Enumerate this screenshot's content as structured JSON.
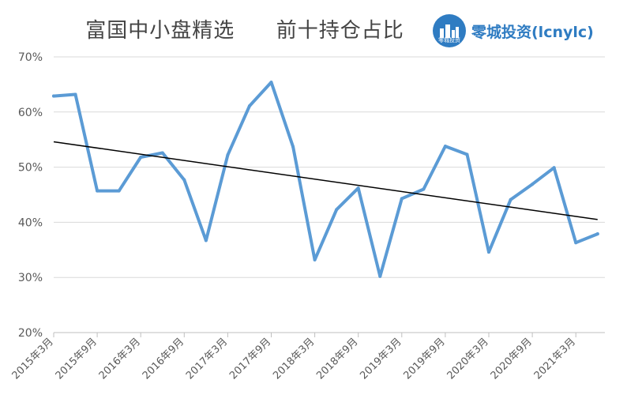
{
  "header": {
    "title_left": "富国中小盘精选",
    "title_right": "前十持仓占比",
    "logo_text": "零城投资(lcnylc)",
    "logo_sub": "零城投资",
    "logo_icon": "city-buildings-icon"
  },
  "colors": {
    "series": "#5b9bd5",
    "trend": "#000000",
    "grid": "#d9d9d9",
    "logo": "#2f7cc2"
  },
  "chart_data": {
    "type": "line",
    "title": "富国中小盘精选 前十持仓占比",
    "xlabel": "",
    "ylabel": "",
    "ylim": [
      20,
      70
    ],
    "yticks": [
      20,
      30,
      40,
      50,
      60,
      70
    ],
    "ytick_labels": [
      "20%",
      "30%",
      "40%",
      "50%",
      "60%",
      "70%"
    ],
    "x": [
      "2015Q1",
      "2015Q2",
      "2015Q3",
      "2015Q4",
      "2016Q1",
      "2016Q2",
      "2016Q3",
      "2016Q4",
      "2017Q1",
      "2017Q2",
      "2017Q3",
      "2017Q4",
      "2018Q1",
      "2018Q2",
      "2018Q3",
      "2018Q4",
      "2019Q1",
      "2019Q2",
      "2019Q3",
      "2019Q4",
      "2020Q1",
      "2020Q2",
      "2020Q3",
      "2020Q4",
      "2021Q1",
      "2021Q2"
    ],
    "xtick_labels": [
      "2015年3月",
      "2015年9月",
      "2016年3月",
      "2016年9月",
      "2017年3月",
      "2017年9月",
      "2018年3月",
      "2018年9月",
      "2019年3月",
      "2019年9月",
      "2020年3月",
      "2020年9月",
      "2021年3月"
    ],
    "series": [
      {
        "values": [
          62.9,
          63.2,
          45.7,
          45.7,
          51.8,
          52.6,
          47.7,
          36.7,
          52.2,
          61.1,
          65.4,
          53.7,
          33.2,
          42.3,
          46.2,
          30.2,
          44.3,
          46.0,
          53.8,
          52.3,
          34.6,
          44.1,
          46.9,
          49.9,
          36.3,
          37.9
        ]
      }
    ],
    "trendline": {
      "start": 54.6,
      "end": 40.5
    },
    "grid": true,
    "legend": "none"
  }
}
